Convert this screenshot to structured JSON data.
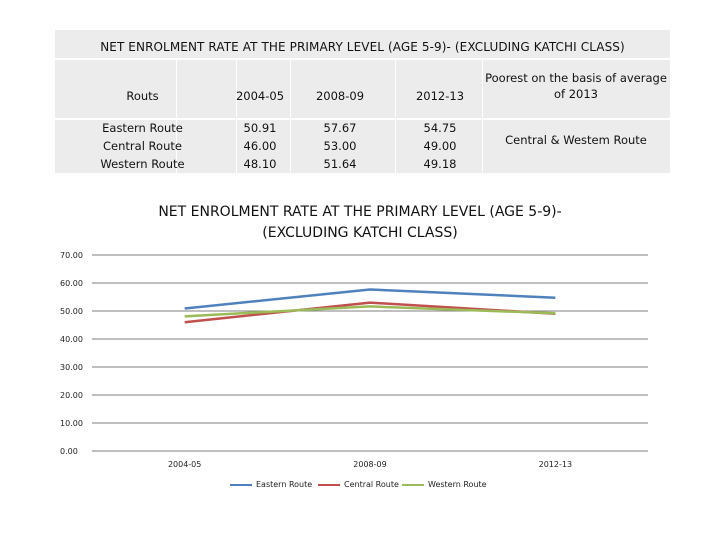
{
  "table": {
    "title": "NET ENROLMENT RATE AT THE PRIMARY LEVEL (AGE 5-9)- (EXCLUDING KATCHI CLASS)",
    "headers": [
      "Routs",
      "2004-05",
      "2008-09",
      "2012-13",
      "Poorest on the basis of average of 2013"
    ],
    "rows": [
      {
        "route": "Eastern Route",
        "values": [
          "50.91",
          "57.67",
          "54.75"
        ]
      },
      {
        "route": "Central Route",
        "values": [
          "46.00",
          "53.00",
          "49.00"
        ]
      },
      {
        "route": "Western Route",
        "values": [
          "48.10",
          "51.64",
          "49.18"
        ]
      }
    ],
    "poorest": "Central & Westem Route"
  },
  "chart_data": {
    "type": "line",
    "title": "NET ENROLMENT RATE AT THE PRIMARY LEVEL (AGE 5-9)- (EXCLUDING KATCHI CLASS)",
    "categories": [
      "2004-05",
      "2008-09",
      "2012-13"
    ],
    "series": [
      {
        "name": "Eastern Route",
        "values": [
          50.91,
          57.67,
          54.75
        ],
        "color": "#4f81bd"
      },
      {
        "name": "Central Route",
        "values": [
          46.0,
          53.0,
          49.0
        ],
        "color": "#c0504d"
      },
      {
        "name": "Western Route",
        "values": [
          48.1,
          51.64,
          49.18
        ],
        "color": "#9bbb59"
      }
    ],
    "yticks": [
      "0.00",
      "10.00",
      "20.00",
      "30.00",
      "40.00",
      "50.00",
      "60.00",
      "70.00"
    ],
    "ylim": [
      0,
      70
    ],
    "grid": true,
    "legend": "bottom"
  }
}
